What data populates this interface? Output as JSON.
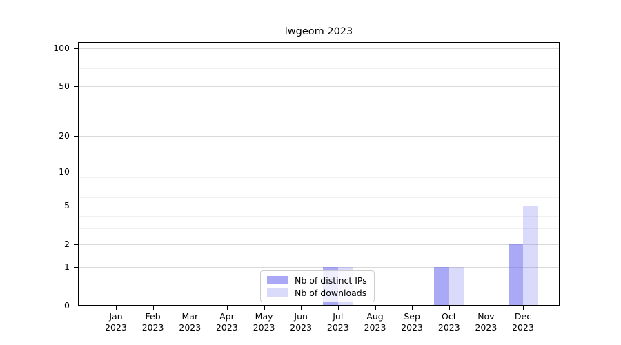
{
  "chart_data": {
    "type": "bar",
    "title": "lwgeom 2023",
    "year": "2023",
    "categories": [
      "Jan",
      "Feb",
      "Mar",
      "Apr",
      "May",
      "Jun",
      "Jul",
      "Aug",
      "Sep",
      "Oct",
      "Nov",
      "Dec"
    ],
    "series": [
      {
        "name": "Nb of distinct IPs",
        "color": "rgba(99,99,237,0.55)",
        "values": [
          0,
          0,
          0,
          0,
          0,
          0,
          1,
          0,
          0,
          1,
          0,
          2
        ]
      },
      {
        "name": "Nb of downloads",
        "color": "rgba(99,99,237,0.24)",
        "values": [
          0,
          0,
          0,
          0,
          0,
          0,
          1,
          0,
          0,
          1,
          0,
          5
        ]
      }
    ],
    "y_axis": {
      "scale": "log1p",
      "major_ticks": [
        0,
        1,
        2,
        5,
        10,
        20,
        50,
        100
      ],
      "minor_ticks": [
        3,
        4,
        6,
        7,
        8,
        9,
        30,
        40,
        60,
        70,
        80,
        90
      ],
      "range": [
        0,
        130
      ]
    },
    "legend_position": "inside-bottom-center",
    "grid": {
      "major_color": "#d9d9d9",
      "minor_color": "#f1f1f1"
    }
  }
}
